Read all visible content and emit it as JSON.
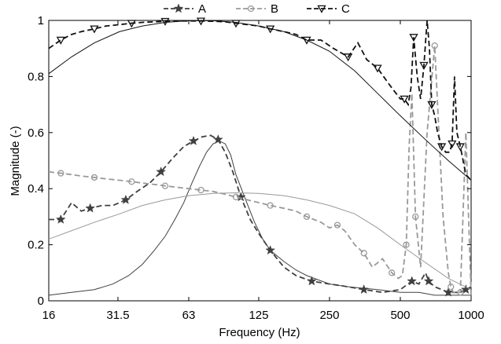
{
  "chart_data": {
    "type": "line",
    "title": "",
    "xlabel": "Frequency (Hz)",
    "ylabel": "Magnitude (-)",
    "xscale": "log",
    "xlim": [
      16,
      1000
    ],
    "ylim": [
      0,
      1
    ],
    "x_ticks": [
      16,
      31.5,
      63,
      125,
      250,
      500,
      1000
    ],
    "x_tick_labels": [
      "16",
      "31.5",
      "63",
      "125",
      "250",
      "500",
      "1000"
    ],
    "y_ticks": [
      0,
      0.2,
      0.4,
      0.6,
      0.8,
      1
    ],
    "y_tick_labels": [
      "0",
      "0.2",
      "0.4",
      "0.6",
      "0.8",
      "1"
    ],
    "grid": false,
    "legend_position": "top-center",
    "legend": [
      "A",
      "B",
      "C"
    ],
    "series": [
      {
        "name": "A",
        "color": "#404040",
        "marker": "star",
        "measured": {
          "x": [
            16,
            18,
            20,
            22,
            24,
            27,
            30,
            34,
            38,
            43,
            48,
            54,
            60,
            66,
            72,
            78,
            84,
            90,
            97,
            105,
            115,
            125,
            140,
            160,
            180,
            210,
            250,
            300,
            350,
            420,
            500,
            560,
            600,
            640,
            660,
            700,
            750,
            800,
            850,
            900,
            950,
            1000
          ],
          "y": [
            0.29,
            0.29,
            0.35,
            0.32,
            0.33,
            0.34,
            0.34,
            0.36,
            0.39,
            0.42,
            0.46,
            0.51,
            0.55,
            0.57,
            0.585,
            0.59,
            0.575,
            0.53,
            0.46,
            0.37,
            0.29,
            0.24,
            0.18,
            0.12,
            0.09,
            0.07,
            0.06,
            0.05,
            0.04,
            0.03,
            0.04,
            0.07,
            0.06,
            0.1,
            0.07,
            0.05,
            0.04,
            0.03,
            0.03,
            0.03,
            0.04,
            0.05
          ]
        },
        "model": {
          "x": [
            16,
            20,
            25,
            30,
            35,
            40,
            45,
            50,
            55,
            60,
            65,
            70,
            75,
            80,
            85,
            90,
            95,
            100,
            110,
            120,
            130,
            140,
            160,
            180,
            200,
            250,
            300,
            400,
            500,
            600,
            700,
            800,
            900,
            1000
          ],
          "y": [
            0.02,
            0.03,
            0.04,
            0.06,
            0.09,
            0.13,
            0.18,
            0.23,
            0.29,
            0.35,
            0.42,
            0.48,
            0.53,
            0.56,
            0.57,
            0.56,
            0.52,
            0.45,
            0.36,
            0.28,
            0.22,
            0.18,
            0.14,
            0.11,
            0.09,
            0.06,
            0.05,
            0.04,
            0.03,
            0.03,
            0.02,
            0.02,
            0.02,
            0.02
          ]
        }
      },
      {
        "name": "B",
        "color": "#999999",
        "marker": "circle",
        "measured": {
          "x": [
            16,
            18,
            20,
            22,
            25,
            28,
            32,
            36,
            40,
            45,
            50,
            56,
            63,
            71,
            80,
            90,
            100,
            112,
            125,
            140,
            160,
            180,
            200,
            230,
            250,
            270,
            290,
            320,
            350,
            380,
            420,
            460,
            490,
            510,
            530,
            545,
            560,
            580,
            610,
            650,
            700,
            760,
            800,
            820,
            840,
            860,
            900,
            950,
            1000
          ],
          "y": [
            0.46,
            0.455,
            0.45,
            0.445,
            0.44,
            0.435,
            0.43,
            0.425,
            0.42,
            0.415,
            0.41,
            0.405,
            0.4,
            0.395,
            0.39,
            0.38,
            0.37,
            0.36,
            0.35,
            0.34,
            0.33,
            0.32,
            0.3,
            0.28,
            0.26,
            0.27,
            0.25,
            0.2,
            0.17,
            0.12,
            0.15,
            0.1,
            0.08,
            0.09,
            0.2,
            0.55,
            0.74,
            0.3,
            0.12,
            0.6,
            0.91,
            0.3,
            0.1,
            0.05,
            0.03,
            0.03,
            0.03,
            0.6,
            0.02
          ]
        },
        "model": {
          "x": [
            16,
            20,
            25,
            32,
            40,
            50,
            63,
            80,
            100,
            125,
            160,
            200,
            250,
            320,
            400,
            500,
            630,
            800,
            1000
          ],
          "y": [
            0.22,
            0.25,
            0.28,
            0.31,
            0.34,
            0.36,
            0.375,
            0.383,
            0.385,
            0.383,
            0.375,
            0.36,
            0.34,
            0.31,
            0.26,
            0.2,
            0.14,
            0.08,
            0.04
          ]
        }
      },
      {
        "name": "C",
        "color": "#111111",
        "marker": "triangle-down",
        "measured": {
          "x": [
            16,
            18,
            20,
            22,
            25,
            28,
            32,
            36,
            40,
            45,
            50,
            56,
            63,
            71,
            80,
            90,
            100,
            112,
            125,
            140,
            160,
            180,
            200,
            230,
            260,
            300,
            330,
            360,
            400,
            450,
            500,
            520,
            540,
            555,
            570,
            590,
            610,
            630,
            650,
            665,
            680,
            700,
            720,
            750,
            780,
            810,
            830,
            850,
            870,
            900,
            950,
            1000
          ],
          "y": [
            0.9,
            0.93,
            0.95,
            0.96,
            0.97,
            0.98,
            0.985,
            0.99,
            0.993,
            0.995,
            0.997,
            0.998,
            0.998,
            0.998,
            0.997,
            0.995,
            0.99,
            0.985,
            0.98,
            0.97,
            0.96,
            0.95,
            0.93,
            0.93,
            0.9,
            0.87,
            0.92,
            0.86,
            0.83,
            0.77,
            0.72,
            0.72,
            0.7,
            0.76,
            0.94,
            0.8,
            0.72,
            0.84,
            1.0,
            0.9,
            0.7,
            0.66,
            0.6,
            0.55,
            0.53,
            0.53,
            0.56,
            0.8,
            0.6,
            0.55,
            0.45,
            0.43
          ]
        },
        "model": {
          "x": [
            16,
            20,
            25,
            32,
            40,
            50,
            63,
            80,
            100,
            125,
            160,
            200,
            250,
            320,
            400,
            500,
            630,
            800,
            1000
          ],
          "y": [
            0.81,
            0.87,
            0.92,
            0.96,
            0.98,
            0.993,
            0.999,
            0.999,
            0.993,
            0.98,
            0.96,
            0.93,
            0.89,
            0.82,
            0.74,
            0.66,
            0.58,
            0.5,
            0.43
          ]
        }
      }
    ]
  }
}
